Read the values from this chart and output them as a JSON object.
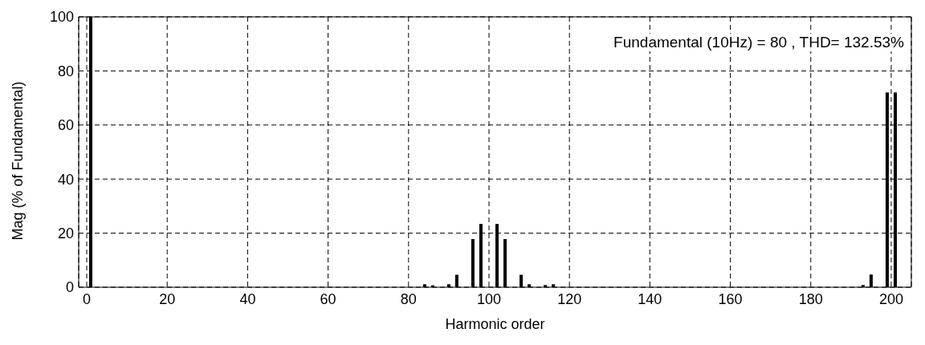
{
  "chart_data": {
    "type": "bar",
    "xlabel": "Harmonic order",
    "ylabel": "Mag (% of Fundamental)",
    "annotations": [
      "Fundamental (10Hz) = 80 , THD= 132.53%"
    ],
    "x": [
      1,
      80,
      84,
      86,
      90,
      92,
      96,
      98,
      102,
      104,
      108,
      110,
      114,
      116,
      120,
      193,
      195,
      199,
      201
    ],
    "values": [
      100,
      null,
      1.1,
      0.7,
      1.1,
      4.6,
      17.8,
      23.4,
      23.4,
      17.8,
      4.6,
      1.1,
      0.8,
      1.1,
      null,
      0.8,
      4.7,
      72,
      72
    ],
    "color": "#000000",
    "xlim": [
      -2,
      205
    ],
    "xticks": [
      0,
      20,
      40,
      60,
      80,
      100,
      120,
      140,
      160,
      180,
      200
    ],
    "ylim": [
      0,
      100
    ],
    "yticks": [
      0,
      20,
      40,
      60,
      80,
      100
    ],
    "grid": true
  }
}
